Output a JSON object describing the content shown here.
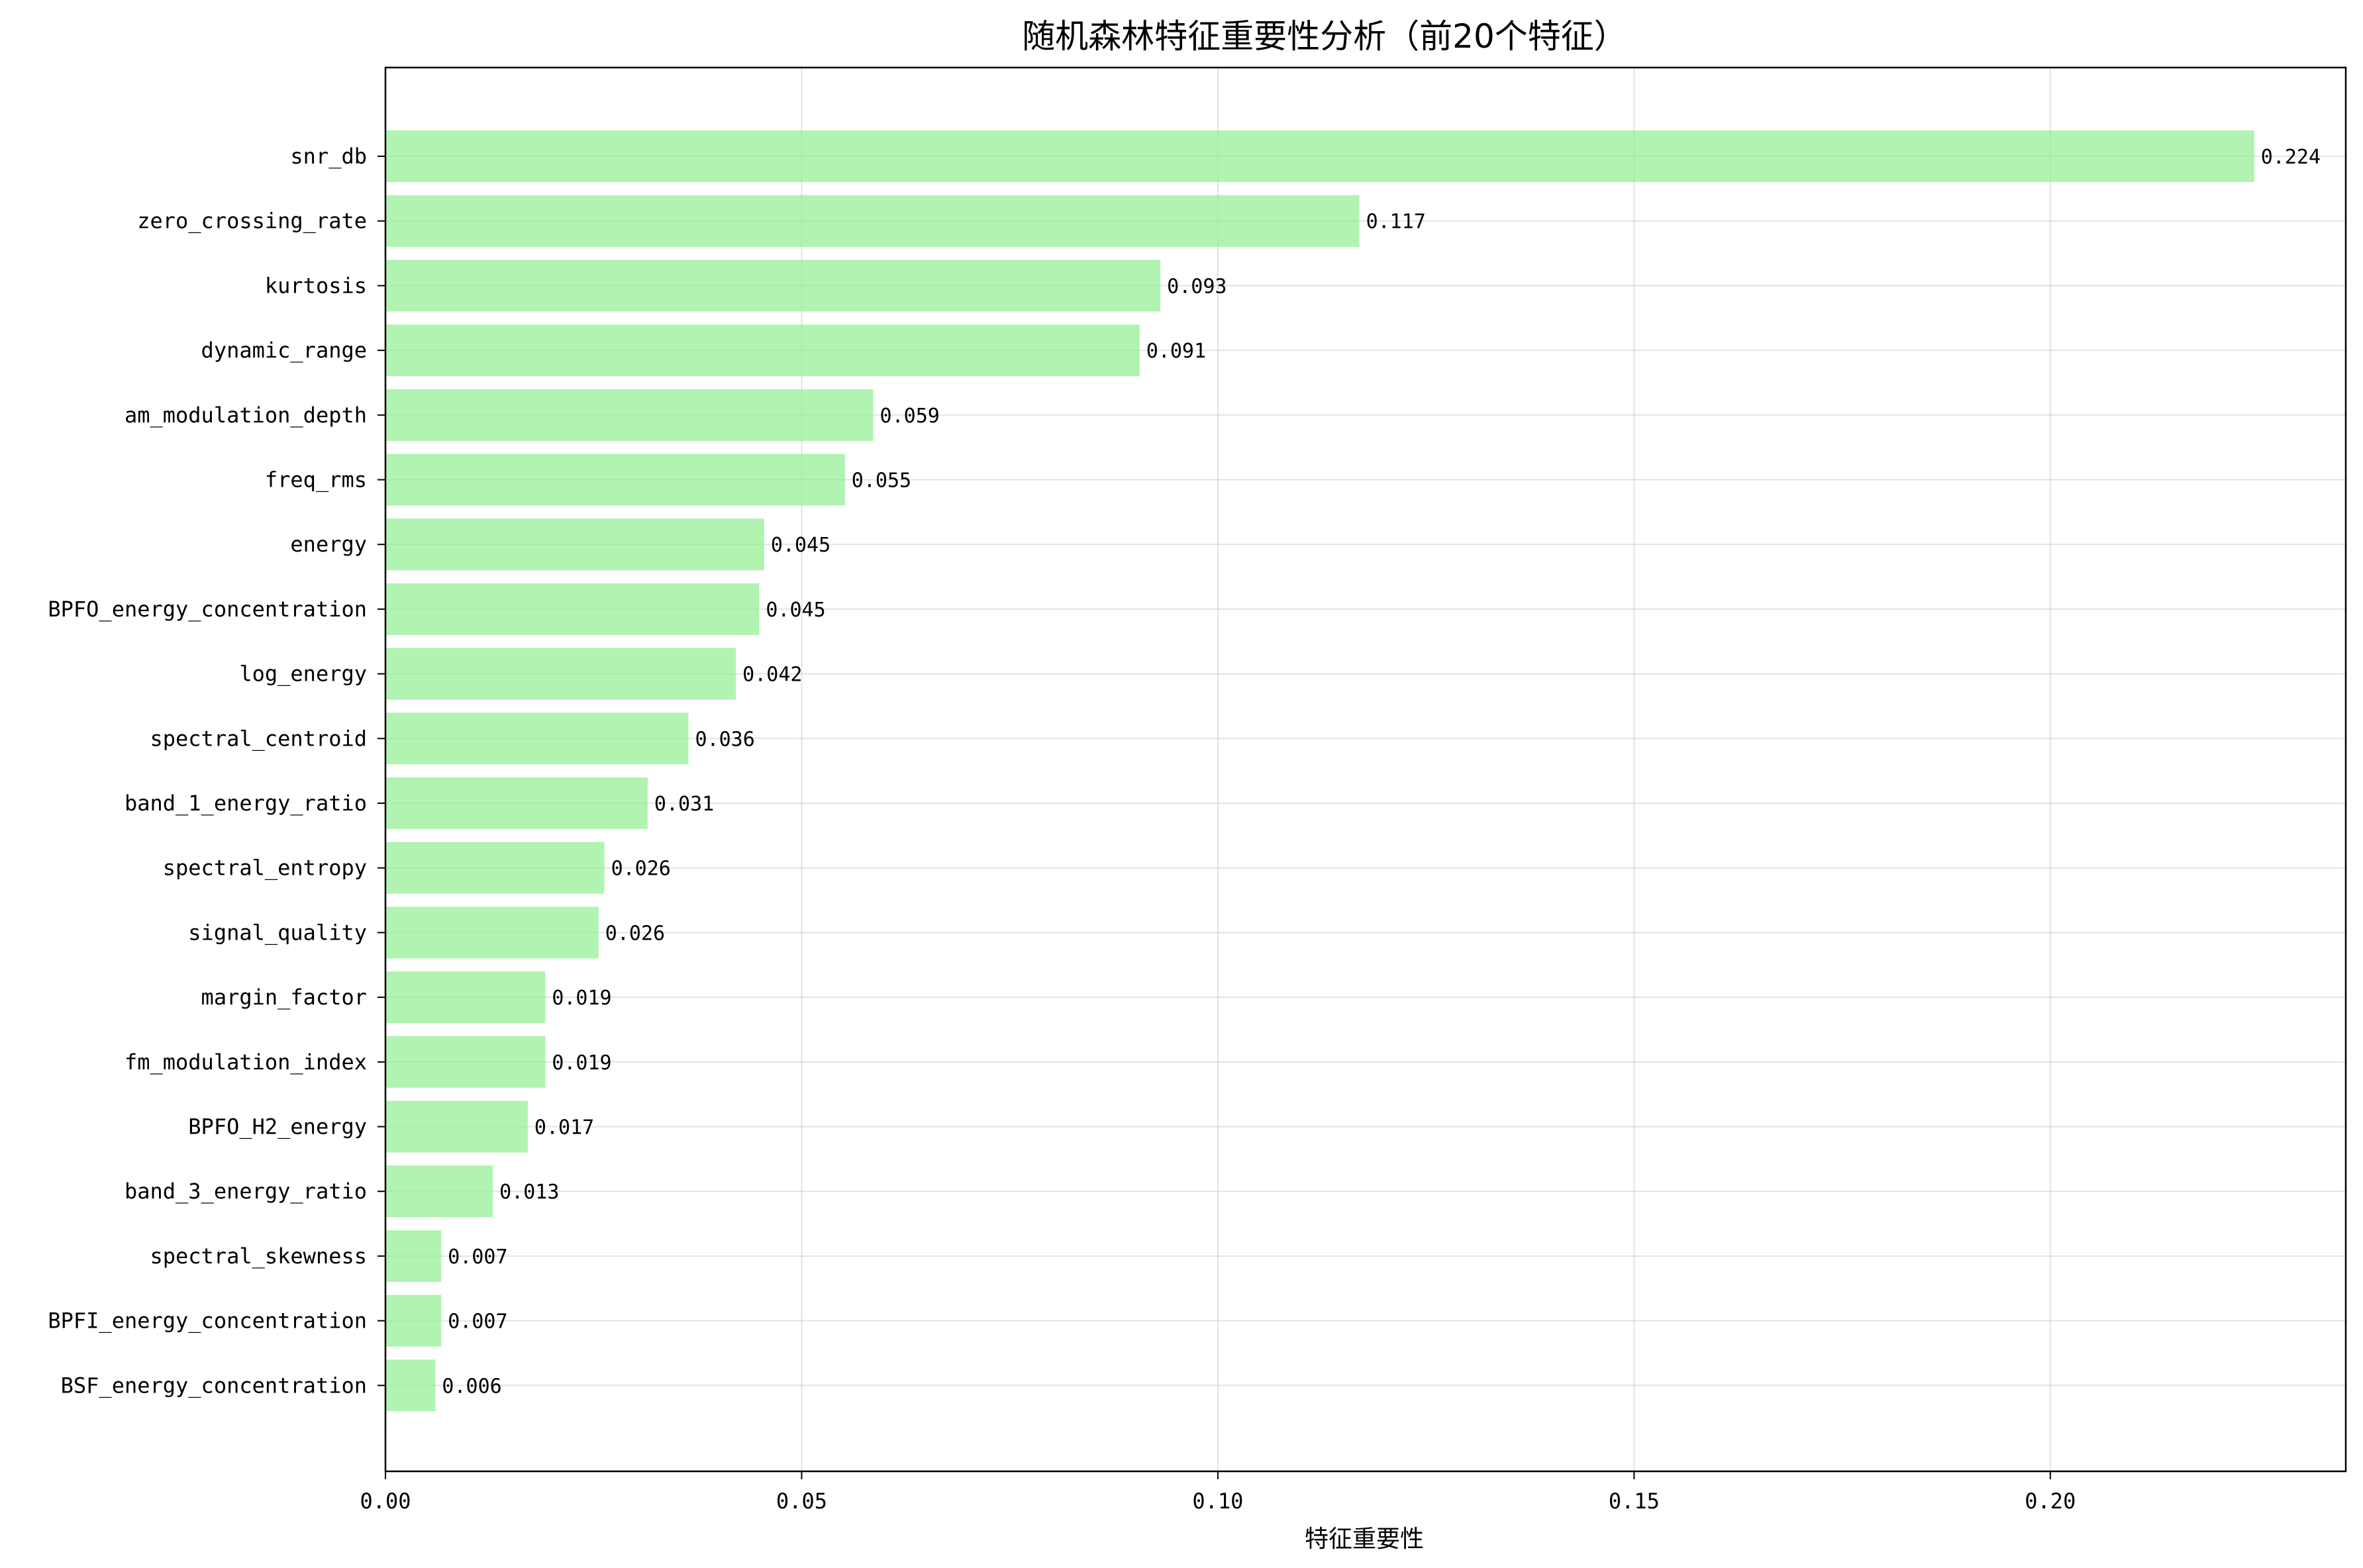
{
  "chart_data": {
    "type": "bar",
    "orientation": "horizontal",
    "title": "随机森林特征重要性分析（前20个特征）",
    "xlabel": "特征重要性",
    "ylabel": "",
    "xlim": [
      0,
      0.2355
    ],
    "xticks": [
      0.0,
      0.05,
      0.1,
      0.15,
      0.2
    ],
    "xtick_labels": [
      "0.00",
      "0.05",
      "0.10",
      "0.15",
      "0.20"
    ],
    "grid": true,
    "bar_color": "#90EE90",
    "bar_opacity": 0.7,
    "categories": [
      "snr_db",
      "zero_crossing_rate",
      "kurtosis",
      "dynamic_range",
      "am_modulation_depth",
      "freq_rms",
      "energy",
      "BPFO_energy_concentration",
      "log_energy",
      "spectral_centroid",
      "band_1_energy_ratio",
      "spectral_entropy",
      "signal_quality",
      "margin_factor",
      "fm_modulation_index",
      "BPFO_H2_energy",
      "band_3_energy_ratio",
      "spectral_skewness",
      "BPFI_energy_concentration",
      "BSF_energy_concentration"
    ],
    "values": [
      0.2245,
      0.117,
      0.0931,
      0.0906,
      0.0586,
      0.0552,
      0.0455,
      0.0449,
      0.0421,
      0.0364,
      0.0315,
      0.0263,
      0.0256,
      0.0192,
      0.0192,
      0.0171,
      0.0129,
      0.0067,
      0.0067,
      0.006
    ],
    "value_labels": [
      "0.224",
      "0.117",
      "0.093",
      "0.091",
      "0.059",
      "0.055",
      "0.045",
      "0.045",
      "0.042",
      "0.036",
      "0.031",
      "0.026",
      "0.026",
      "0.019",
      "0.019",
      "0.017",
      "0.013",
      "0.007",
      "0.007",
      "0.006"
    ]
  }
}
